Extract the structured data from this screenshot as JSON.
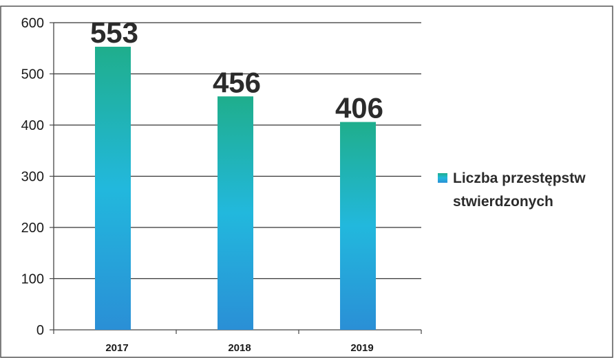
{
  "chart_data": {
    "type": "bar",
    "categories": [
      "2017",
      "2018",
      "2019"
    ],
    "series": [
      {
        "name": "Liczba przestępstw stwierdzonych",
        "values": [
          553,
          456,
          406
        ]
      }
    ],
    "data_labels": [
      "553",
      "456",
      "406"
    ],
    "yticks": [
      0,
      100,
      200,
      300,
      400,
      500,
      600
    ],
    "ylim": [
      0,
      600
    ],
    "grid": true,
    "legend": {
      "position": "right",
      "lines": [
        "Liczba przestępstw",
        "stwierdzonych"
      ]
    },
    "colors": {
      "bar_top": "#1fae8c",
      "bar_mid": "#22b8dd",
      "bar_bottom": "#2a8fd6",
      "grid": "#333333",
      "axis": "#444444",
      "frame": "#555555"
    }
  }
}
